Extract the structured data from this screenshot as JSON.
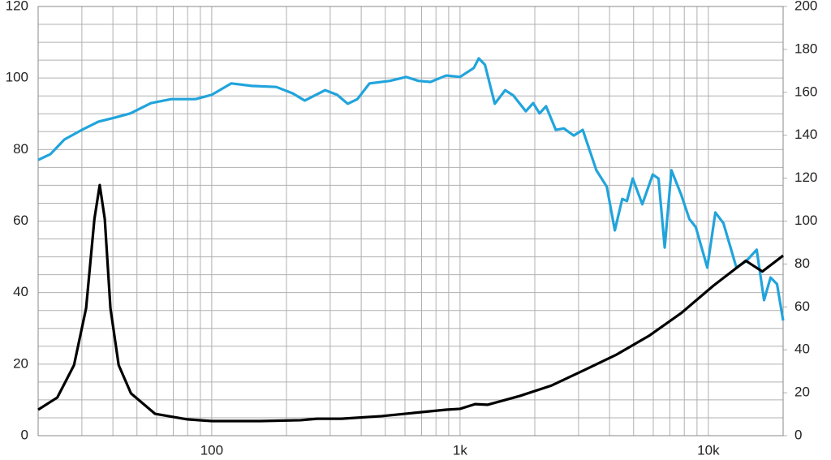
{
  "chart_data": {
    "type": "line",
    "log_x": true,
    "grid": true,
    "xlim": [
      20,
      20000
    ],
    "xticks": [
      {
        "value": 100,
        "label": "100"
      },
      {
        "value": 1000,
        "label": "1k"
      },
      {
        "value": 10000,
        "label": "10k"
      }
    ],
    "xminor_ticks": [
      30,
      40,
      50,
      60,
      70,
      80,
      90,
      200,
      300,
      400,
      500,
      600,
      700,
      800,
      900,
      2000,
      3000,
      4000,
      5000,
      6000,
      7000,
      8000,
      9000
    ],
    "ylim": [
      0,
      120
    ],
    "yticks": [
      0,
      20,
      40,
      60,
      80,
      100,
      120
    ],
    "yminor_ticks": [
      5,
      10,
      15,
      25,
      30,
      35,
      45,
      50,
      55,
      65,
      70,
      75,
      85,
      90,
      95,
      105,
      110,
      115
    ],
    "y2lim": [
      0,
      200
    ],
    "y2ticks": [
      0,
      20,
      40,
      60,
      80,
      100,
      120,
      140,
      160,
      180,
      200
    ],
    "series": [
      {
        "color": "#21a4dc",
        "x": [
          20,
          22.4,
          25.5,
          30,
          35,
          40.6,
          47,
          57,
          68.7,
          86,
          100,
          120,
          145,
          182,
          212,
          237,
          286,
          320,
          353,
          386,
          432,
          522,
          607,
          680,
          760,
          880,
          1000,
          1136,
          1190,
          1260,
          1380,
          1520,
          1640,
          1840,
          1970,
          2090,
          2220,
          2430,
          2620,
          2870,
          3120,
          3540,
          3900,
          4200,
          4500,
          4700,
          4960,
          5420,
          5970,
          6300,
          6670,
          7100,
          7770,
          8380,
          8900,
          9900,
          10670,
          11500,
          12970,
          14200,
          15650,
          16760,
          17800,
          18900,
          20000
        ],
        "values": [
          77.1,
          78.7,
          82.8,
          85.5,
          87.8,
          88.9,
          90.1,
          93,
          94.1,
          94.1,
          95.3,
          98.5,
          97.8,
          97.5,
          95.7,
          93.7,
          96.6,
          95.3,
          92.8,
          94.1,
          98.5,
          99.2,
          100.3,
          99.2,
          98.9,
          100.7,
          100.3,
          102.8,
          105.5,
          103.7,
          92.8,
          96.6,
          95.1,
          90.7,
          93,
          90.1,
          92.1,
          85.5,
          85.9,
          83.9,
          85.5,
          74.2,
          69.6,
          57.4,
          66.2,
          65.6,
          71.9,
          64.7,
          73,
          71.9,
          52.6,
          74.2,
          67.4,
          60.6,
          58.3,
          47,
          62.4,
          59.4,
          47,
          48.8,
          52,
          37.9,
          44.2,
          42.4,
          32.2
        ]
      },
      {
        "color": "#000000",
        "axis": "y2",
        "x": [
          20,
          23.9,
          27.9,
          31.2,
          33.7,
          35.4,
          37.1,
          39.1,
          42.2,
          47.3,
          59.1,
          79.8,
          100,
          157,
          228,
          266,
          333,
          483,
          706,
          880,
          1000,
          1150,
          1290,
          1740,
          2340,
          3170,
          4270,
          5760,
          7770,
          10480,
          14150,
          16500,
          20000
        ],
        "values": [
          12.1,
          17.8,
          32.9,
          59.4,
          101,
          116.8,
          101,
          59.4,
          32.9,
          19.7,
          10.2,
          7.6,
          6.8,
          6.8,
          7.2,
          7.9,
          7.9,
          9.1,
          11,
          12.1,
          12.5,
          14.7,
          14.4,
          18.5,
          23.4,
          30.6,
          37.8,
          46.5,
          57.1,
          69.9,
          81.5,
          76.5,
          83.9
        ]
      }
    ]
  }
}
